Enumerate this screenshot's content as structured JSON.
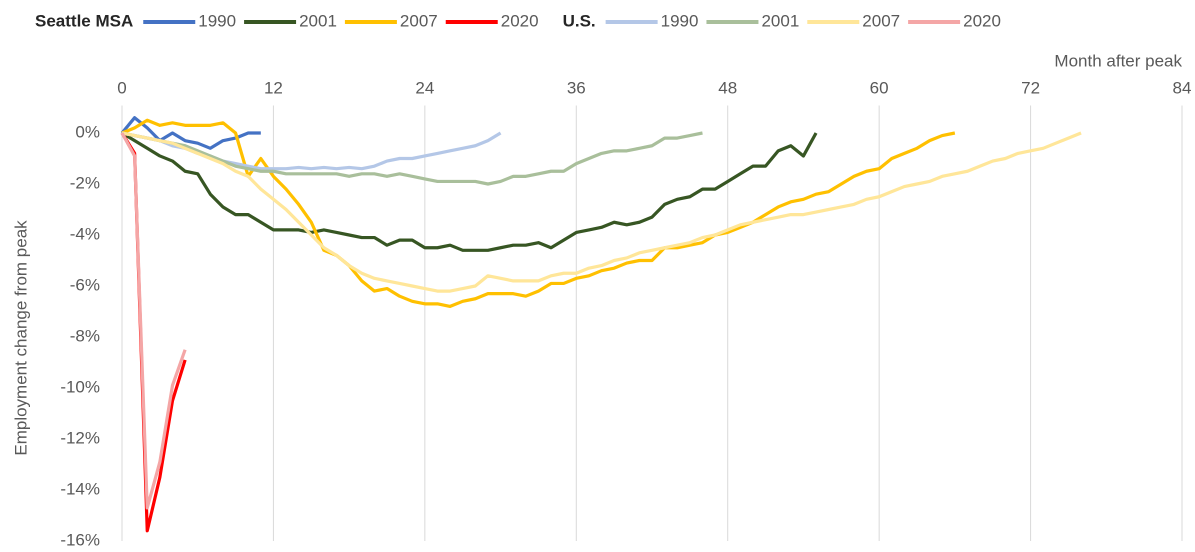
{
  "chart_data": {
    "type": "line",
    "x_label": "Month after peak",
    "y_label": "Employment change from peak",
    "legend_groups": [
      "Seattle MSA",
      "U.S."
    ],
    "xlim": [
      0,
      84
    ],
    "xticks": [
      0,
      12,
      24,
      36,
      48,
      60,
      72,
      84
    ],
    "ylim": [
      -16,
      1
    ],
    "yticks": [
      {
        "value": 0,
        "label": "0%"
      },
      {
        "value": -2,
        "label": "-2%"
      },
      {
        "value": -4,
        "label": "-4%"
      },
      {
        "value": -6,
        "label": "-6%"
      },
      {
        "value": -8,
        "label": "-8%"
      },
      {
        "value": -10,
        "label": "-10%"
      },
      {
        "value": -12,
        "label": "-12%"
      },
      {
        "value": -14,
        "label": "-14%"
      },
      {
        "value": -16,
        "label": "-16%"
      }
    ],
    "grid": "x",
    "legend": "top",
    "series": [
      {
        "name": "1990",
        "color": "#4472c4",
        "x": [
          0,
          1,
          2,
          3,
          4,
          5,
          6,
          7,
          8,
          9,
          10,
          11
        ],
        "values": [
          0,
          0.6,
          0.2,
          -0.3,
          0,
          -0.3,
          -0.4,
          -0.6,
          -0.3,
          -0.2,
          0,
          0
        ]
      },
      {
        "name": "2001",
        "color": "#375623",
        "x": [
          0,
          1,
          2,
          3,
          4,
          5,
          6,
          7,
          8,
          9,
          10,
          11,
          12,
          13,
          14,
          15,
          16,
          17,
          18,
          19,
          20,
          21,
          22,
          23,
          24,
          25,
          26,
          27,
          28,
          29,
          30,
          31,
          32,
          33,
          34,
          35,
          36,
          37,
          38,
          39,
          40,
          41,
          42,
          43,
          44,
          45,
          46,
          47,
          48,
          49,
          50,
          51,
          52,
          53,
          54,
          55
        ],
        "values": [
          0,
          -0.3,
          -0.6,
          -0.9,
          -1.1,
          -1.5,
          -1.6,
          -2.4,
          -2.9,
          -3.2,
          -3.2,
          -3.5,
          -3.8,
          -3.8,
          -3.8,
          -3.9,
          -3.8,
          -3.9,
          -4.0,
          -4.1,
          -4.1,
          -4.4,
          -4.2,
          -4.2,
          -4.5,
          -4.5,
          -4.4,
          -4.6,
          -4.6,
          -4.6,
          -4.5,
          -4.4,
          -4.4,
          -4.3,
          -4.5,
          -4.2,
          -3.9,
          -3.8,
          -3.7,
          -3.5,
          -3.6,
          -3.5,
          -3.3,
          -2.8,
          -2.6,
          -2.5,
          -2.2,
          -2.2,
          -1.9,
          -1.6,
          -1.3,
          -1.3,
          -0.7,
          -0.5,
          -0.9,
          0
        ]
      },
      {
        "name": "2007",
        "color": "#ffc000",
        "x": [
          0,
          1,
          2,
          3,
          4,
          5,
          6,
          7,
          8,
          9,
          10,
          11,
          12,
          13,
          14,
          15,
          16,
          17,
          18,
          19,
          20,
          21,
          22,
          23,
          24,
          25,
          26,
          27,
          28,
          29,
          30,
          31,
          32,
          33,
          34,
          35,
          36,
          37,
          38,
          39,
          40,
          41,
          42,
          43,
          44,
          45,
          46,
          47,
          48,
          49,
          50,
          51,
          52,
          53,
          54,
          55,
          56,
          57,
          58,
          59,
          60,
          61,
          62,
          63,
          64,
          65,
          66
        ],
        "values": [
          0,
          0.2,
          0.5,
          0.3,
          0.4,
          0.3,
          0.3,
          0.3,
          0.4,
          0,
          -1.7,
          -1.0,
          -1.7,
          -2.2,
          -2.8,
          -3.5,
          -4.6,
          -4.8,
          -5.2,
          -5.8,
          -6.2,
          -6.1,
          -6.4,
          -6.6,
          -6.7,
          -6.7,
          -6.8,
          -6.6,
          -6.5,
          -6.3,
          -6.3,
          -6.3,
          -6.4,
          -6.2,
          -5.9,
          -5.9,
          -5.7,
          -5.6,
          -5.4,
          -5.3,
          -5.1,
          -5.0,
          -5.0,
          -4.5,
          -4.5,
          -4.4,
          -4.3,
          -4.0,
          -3.9,
          -3.7,
          -3.5,
          -3.2,
          -2.9,
          -2.7,
          -2.6,
          -2.4,
          -2.3,
          -2.0,
          -1.7,
          -1.5,
          -1.4,
          -1.0,
          -0.8,
          -0.6,
          -0.3,
          -0.1,
          0
        ]
      },
      {
        "name": "2020",
        "color": "#ff0000",
        "x": [
          0,
          1,
          2,
          3,
          4,
          5
        ],
        "values": [
          0,
          -0.8,
          -15.6,
          -13.5,
          -10.5,
          -8.9
        ]
      },
      {
        "name": "1990",
        "color": "#b4c7e7",
        "x": [
          0,
          1,
          2,
          3,
          4,
          5,
          6,
          7,
          8,
          9,
          10,
          11,
          12,
          13,
          14,
          15,
          16,
          17,
          18,
          19,
          20,
          21,
          22,
          23,
          24,
          25,
          26,
          27,
          28,
          29,
          30
        ],
        "values": [
          0,
          -0.1,
          -0.2,
          -0.3,
          -0.5,
          -0.6,
          -0.8,
          -0.9,
          -1.1,
          -1.2,
          -1.3,
          -1.4,
          -1.4,
          -1.4,
          -1.35,
          -1.4,
          -1.35,
          -1.4,
          -1.35,
          -1.4,
          -1.3,
          -1.1,
          -1.0,
          -1.0,
          -0.9,
          -0.8,
          -0.7,
          -0.6,
          -0.5,
          -0.3,
          0
        ]
      },
      {
        "name": "2001",
        "color": "#a9bf9b",
        "x": [
          0,
          1,
          2,
          3,
          4,
          5,
          6,
          7,
          8,
          9,
          10,
          11,
          12,
          13,
          14,
          15,
          16,
          17,
          18,
          19,
          20,
          21,
          22,
          23,
          24,
          25,
          26,
          27,
          28,
          29,
          30,
          31,
          32,
          33,
          34,
          35,
          36,
          37,
          38,
          39,
          40,
          41,
          42,
          43,
          44,
          45,
          46
        ],
        "values": [
          0,
          -0.1,
          -0.2,
          -0.3,
          -0.4,
          -0.5,
          -0.7,
          -0.9,
          -1.1,
          -1.3,
          -1.4,
          -1.5,
          -1.5,
          -1.6,
          -1.6,
          -1.6,
          -1.6,
          -1.6,
          -1.7,
          -1.6,
          -1.6,
          -1.7,
          -1.6,
          -1.7,
          -1.8,
          -1.9,
          -1.9,
          -1.9,
          -1.9,
          -2.0,
          -1.9,
          -1.7,
          -1.7,
          -1.6,
          -1.5,
          -1.5,
          -1.2,
          -1.0,
          -0.8,
          -0.7,
          -0.7,
          -0.6,
          -0.5,
          -0.2,
          -0.2,
          -0.1,
          0
        ]
      },
      {
        "name": "2007",
        "color": "#ffe699",
        "x": [
          0,
          1,
          2,
          3,
          4,
          5,
          6,
          7,
          8,
          9,
          10,
          11,
          12,
          13,
          14,
          15,
          16,
          17,
          18,
          19,
          20,
          21,
          22,
          23,
          24,
          25,
          26,
          27,
          28,
          29,
          30,
          31,
          32,
          33,
          34,
          35,
          36,
          37,
          38,
          39,
          40,
          41,
          42,
          43,
          44,
          45,
          46,
          47,
          48,
          49,
          50,
          51,
          52,
          53,
          54,
          55,
          56,
          57,
          58,
          59,
          60,
          61,
          62,
          63,
          64,
          65,
          66,
          67,
          68,
          69,
          70,
          71,
          72,
          73,
          74,
          75,
          76
        ],
        "values": [
          0,
          -0.1,
          -0.2,
          -0.3,
          -0.4,
          -0.6,
          -0.8,
          -1.0,
          -1.2,
          -1.5,
          -1.7,
          -2.2,
          -2.6,
          -3.0,
          -3.5,
          -4.0,
          -4.5,
          -4.8,
          -5.2,
          -5.5,
          -5.7,
          -5.8,
          -5.9,
          -6.0,
          -6.1,
          -6.2,
          -6.2,
          -6.1,
          -6.0,
          -5.6,
          -5.7,
          -5.8,
          -5.8,
          -5.8,
          -5.6,
          -5.5,
          -5.5,
          -5.3,
          -5.2,
          -5.0,
          -4.9,
          -4.7,
          -4.6,
          -4.5,
          -4.4,
          -4.3,
          -4.1,
          -4.0,
          -3.8,
          -3.6,
          -3.5,
          -3.4,
          -3.3,
          -3.2,
          -3.2,
          -3.1,
          -3.0,
          -2.9,
          -2.8,
          -2.6,
          -2.5,
          -2.3,
          -2.1,
          -2.0,
          -1.9,
          -1.7,
          -1.6,
          -1.5,
          -1.3,
          -1.1,
          -1.0,
          -0.8,
          -0.7,
          -0.6,
          -0.4,
          -0.2,
          0
        ]
      },
      {
        "name": "2020",
        "color": "#f4a6a6",
        "x": [
          0,
          1,
          2,
          3,
          4,
          5
        ],
        "values": [
          0,
          -0.9,
          -14.7,
          -12.9,
          -9.9,
          -8.5
        ]
      }
    ]
  }
}
